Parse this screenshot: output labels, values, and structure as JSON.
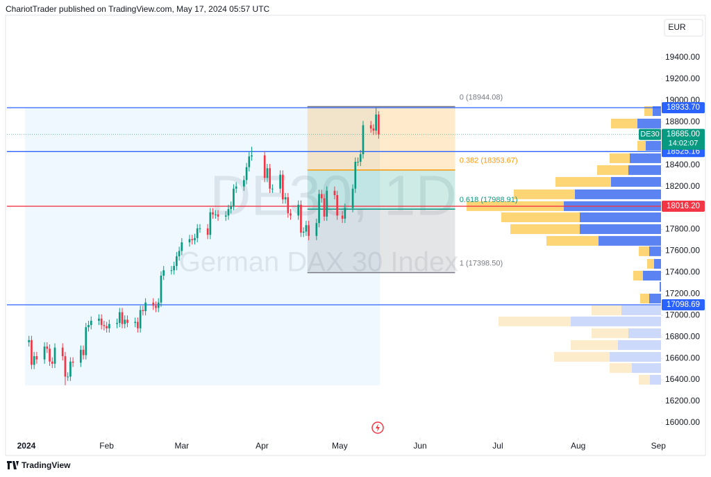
{
  "header": {
    "text": "ChariotTrader published on TradingView.com, May 17, 2024 05:57 UTC"
  },
  "footer": {
    "brand": "TradingView"
  },
  "chart_data": {
    "type": "candlestick",
    "symbol": "DE30",
    "watermark": "DE30, 1D",
    "description": "German DAX 30 Index",
    "currency": "EUR",
    "x": [
      1,
      2,
      3,
      4,
      7,
      8,
      9,
      10,
      11,
      14,
      15,
      16,
      17,
      18,
      21,
      22,
      23,
      24,
      25,
      28,
      29,
      30,
      31,
      32,
      35,
      36,
      37,
      38,
      39,
      42,
      43,
      44,
      45,
      46,
      49,
      50,
      51,
      52,
      53,
      56,
      57,
      58,
      59,
      60,
      63,
      64,
      65,
      66,
      67,
      70,
      71,
      72,
      73,
      74,
      77,
      78,
      79,
      80,
      81,
      84,
      85,
      86,
      87,
      92,
      93,
      94,
      95,
      98,
      99,
      100,
      101,
      102,
      105,
      106,
      107,
      108,
      109,
      112,
      113,
      114,
      115,
      116,
      119,
      120,
      122,
      123,
      126,
      127,
      128,
      129,
      130,
      133,
      134,
      135,
      136
    ],
    "open": [
      16750,
      16770,
      16540,
      16620,
      16590,
      16710,
      16690,
      16570,
      16550,
      16700,
      16620,
      16430,
      16430,
      16570,
      16560,
      16680,
      16630,
      16890,
      16910,
      16950,
      16970,
      16910,
      16900,
      16880,
      16920,
      16930,
      17030,
      16920,
      16960,
      16930,
      16940,
      16880,
      17050,
      17040,
      17120,
      17090,
      17070,
      17120,
      17370,
      17420,
      17420,
      17460,
      17550,
      17600,
      17680,
      17710,
      17700,
      17720,
      17810,
      17810,
      17750,
      17960,
      17940,
      17940,
      17920,
      17930,
      17990,
      18020,
      18180,
      18200,
      18260,
      18380,
      18480,
      18490,
      18280,
      18370,
      18180,
      18180,
      18310,
      18080,
      18100,
      17950,
      17930,
      18030,
      17770,
      17780,
      17840,
      17740,
      17860,
      18130,
      18090,
      17920,
      18160,
      18120,
      17930,
      17900,
      18000,
      18180,
      18430,
      18430,
      18500,
      18770,
      18740,
      18720,
      18870
    ],
    "high": [
      16810,
      16810,
      16660,
      16660,
      16750,
      16750,
      16730,
      16610,
      16740,
      16740,
      16660,
      16470,
      16610,
      16610,
      16720,
      16720,
      16930,
      16950,
      16990,
      17010,
      17010,
      16950,
      16940,
      16960,
      16970,
      17070,
      17070,
      17000,
      17000,
      16980,
      16980,
      17090,
      17090,
      17160,
      17160,
      17130,
      17160,
      17410,
      17460,
      17460,
      17500,
      17590,
      17640,
      17720,
      17750,
      17750,
      17760,
      17850,
      17850,
      17850,
      18000,
      18000,
      17980,
      17980,
      17970,
      18030,
      18060,
      18220,
      18240,
      18300,
      18420,
      18520,
      18570,
      18530,
      18410,
      18410,
      18220,
      18350,
      18350,
      18140,
      18140,
      17990,
      18070,
      18070,
      17820,
      17880,
      17880,
      17900,
      18170,
      18170,
      18130,
      18200,
      18200,
      18160,
      17970,
      18040,
      18220,
      18470,
      18470,
      18540,
      18810,
      18810,
      18780,
      18940,
      18900
    ],
    "low": [
      16710,
      16500,
      16500,
      16550,
      16550,
      16650,
      16530,
      16510,
      16510,
      16580,
      16350,
      16390,
      16390,
      16520,
      16520,
      16590,
      16590,
      16850,
      16870,
      16910,
      16870,
      16860,
      16840,
      16840,
      16880,
      16890,
      16880,
      16880,
      16890,
      16890,
      16840,
      16840,
      17000,
      17000,
      17050,
      17030,
      17030,
      17080,
      17330,
      17380,
      17380,
      17420,
      17510,
      17560,
      17640,
      17660,
      17660,
      17680,
      17770,
      17710,
      17710,
      17900,
      17900,
      17880,
      17880,
      17890,
      17950,
      17980,
      18140,
      18160,
      18220,
      18340,
      18440,
      18240,
      18240,
      18140,
      18140,
      18140,
      18040,
      18040,
      17910,
      17890,
      17890,
      17730,
      17730,
      17740,
      17700,
      17700,
      17820,
      18050,
      17880,
      17880,
      18080,
      17890,
      17860,
      17860,
      17960,
      18140,
      18390,
      18390,
      18460,
      18700,
      18680,
      18680,
      18645
    ],
    "close": [
      16770,
      16540,
      16620,
      16590,
      16710,
      16690,
      16570,
      16550,
      16700,
      16620,
      16430,
      16430,
      16570,
      16560,
      16680,
      16630,
      16890,
      16910,
      16950,
      16970,
      16910,
      16900,
      16880,
      16920,
      16930,
      17030,
      16920,
      16960,
      16930,
      16940,
      16880,
      17050,
      17040,
      17120,
      17090,
      17070,
      17120,
      17370,
      17420,
      17420,
      17460,
      17550,
      17600,
      17680,
      17710,
      17700,
      17720,
      17810,
      17810,
      17750,
      17960,
      17940,
      17940,
      17920,
      17930,
      17990,
      18020,
      18180,
      18200,
      18260,
      18380,
      18480,
      18490,
      18280,
      18370,
      18180,
      18180,
      18310,
      18080,
      18100,
      17950,
      17930,
      18030,
      17770,
      17780,
      17840,
      17740,
      17860,
      18130,
      18090,
      17920,
      18160,
      18120,
      17930,
      17900,
      18000,
      18180,
      18430,
      18430,
      18500,
      18770,
      18740,
      18720,
      18870,
      18685
    ],
    "up_color": "#089981",
    "down_color": "#f23645",
    "last_price": {
      "value": 18685,
      "label": "18685.00",
      "countdown": "14:02:07",
      "color": "#089981"
    },
    "xlim": [
      -7.5,
      245
    ],
    "xticks": [
      {
        "value": 0,
        "label": "2024"
      },
      {
        "value": 31,
        "label": "Feb"
      },
      {
        "value": 60,
        "label": "Mar"
      },
      {
        "value": 91,
        "label": "Apr"
      },
      {
        "value": 121,
        "label": "May"
      },
      {
        "value": 152,
        "label": "Jun"
      },
      {
        "value": 182,
        "label": "Jul"
      },
      {
        "value": 213,
        "label": "Aug"
      },
      {
        "value": 244,
        "label": "Sep"
      }
    ],
    "ylim": [
      15864,
      19794
    ],
    "yticks": [
      {
        "value": 16000,
        "label": "16000.00"
      },
      {
        "value": 16200,
        "label": "16200.00"
      },
      {
        "value": 16400,
        "label": "16400.00"
      },
      {
        "value": 16600,
        "label": "16600.00"
      },
      {
        "value": 16800,
        "label": "16800.00"
      },
      {
        "value": 17000,
        "label": "17000.00"
      },
      {
        "value": 17200,
        "label": "17200.00"
      },
      {
        "value": 17400,
        "label": "17400.00"
      },
      {
        "value": 17600,
        "label": "17600.00"
      },
      {
        "value": 17800,
        "label": "17800.00"
      },
      {
        "value": 18000,
        "label": "18000.00"
      },
      {
        "value": 18200,
        "label": "18200.00"
      },
      {
        "value": 18400,
        "label": "18400.00"
      },
      {
        "value": 18600,
        "label": "18600.00"
      },
      {
        "value": 18800,
        "label": "18800.00"
      },
      {
        "value": 19000,
        "label": "19000.00"
      },
      {
        "value": 19200,
        "label": "19200.00"
      },
      {
        "value": 19400,
        "label": "19400.00"
      }
    ],
    "grid": false,
    "horizontal_lines": [
      {
        "value": 18933.7,
        "label": "18933.70",
        "color": "#2962ff"
      },
      {
        "value": 18525.16,
        "label": "18525.16",
        "color": "#2962ff"
      },
      {
        "value": 18016.2,
        "label": "18016.20",
        "color": "#f23645"
      },
      {
        "value": 17098.69,
        "label": "17098.69",
        "color": "#2962ff"
      }
    ],
    "date_range": {
      "x": [
        -0.5,
        136.5
      ],
      "y": [
        16349,
        18933.7
      ],
      "color": "#2196f3"
    },
    "fib": {
      "x": [
        108.5,
        165.5
      ],
      "levels": [
        {
          "value": 18944.08,
          "label": "0 (18944.08)",
          "color": "#787b86"
        },
        {
          "value": 18353.67,
          "label": "0.382 (18353.67)",
          "color": "#ff9800"
        },
        {
          "value": 17988.91,
          "label": "0.618 (17988.91)",
          "color": "#089981"
        },
        {
          "value": 17398.5,
          "label": "1 (17398.50)",
          "color": "#787b86"
        }
      ]
    },
    "volume_profile": {
      "up_color": "#5b84f2",
      "down_color": "#fdd575",
      "faded_up_color": "#cdd9fb",
      "faded_down_color": "#fdeccb",
      "rows": [
        {
          "price": 18902,
          "up": 12,
          "down": 12,
          "faded": false
        },
        {
          "price": 18786,
          "up": 34,
          "down": 38,
          "faded": false
        },
        {
          "price": 18683,
          "up": 15,
          "down": 15,
          "faded": false
        },
        {
          "price": 18579,
          "up": 22,
          "down": 12,
          "faded": false
        },
        {
          "price": 18463,
          "up": 45,
          "down": 29,
          "faded": false
        },
        {
          "price": 18353,
          "up": 47,
          "down": 45,
          "faded": false
        },
        {
          "price": 18243,
          "up": 72,
          "down": 80,
          "faded": false
        },
        {
          "price": 18127,
          "up": 124,
          "down": 88,
          "faded": false
        },
        {
          "price": 18017,
          "up": 140,
          "down": 140,
          "faded": false
        },
        {
          "price": 17913,
          "up": 117,
          "down": 113,
          "faded": false
        },
        {
          "price": 17803,
          "up": 117,
          "down": 100,
          "faded": false
        },
        {
          "price": 17694,
          "up": 90,
          "down": 75,
          "faded": false
        },
        {
          "price": 17597,
          "up": 17,
          "down": 15,
          "faded": false
        },
        {
          "price": 17480,
          "up": 10,
          "down": 10,
          "faded": false
        },
        {
          "price": 17370,
          "up": 26,
          "down": 14,
          "faded": false
        },
        {
          "price": 17267,
          "up": 2,
          "down": 0,
          "faded": false
        },
        {
          "price": 17157,
          "up": 17,
          "down": 13,
          "faded": false
        },
        {
          "price": 17047,
          "up": 57,
          "down": 43,
          "faded": true
        },
        {
          "price": 16944,
          "up": 130,
          "down": 104,
          "faded": true
        },
        {
          "price": 16834,
          "up": 47,
          "down": 53,
          "faded": true
        },
        {
          "price": 16724,
          "up": 62,
          "down": 68,
          "faded": true
        },
        {
          "price": 16614,
          "up": 74,
          "down": 80,
          "faded": true
        },
        {
          "price": 16510,
          "up": 42,
          "down": 32,
          "faded": true
        },
        {
          "price": 16401,
          "up": 16,
          "down": 16,
          "faded": true
        }
      ]
    }
  }
}
